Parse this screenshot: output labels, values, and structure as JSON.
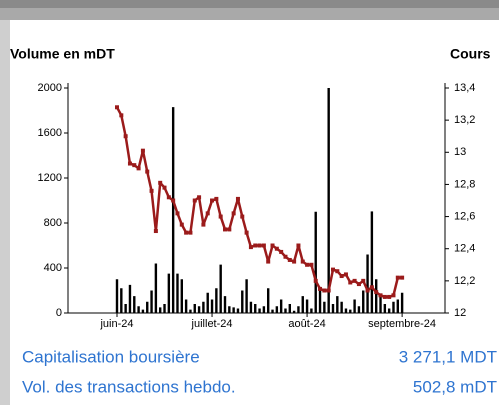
{
  "chart_data": {
    "type": "bar-line",
    "y_label": "Volume en mDT",
    "y2_label": "Cours",
    "categories": [
      "juin-24",
      null,
      null,
      null,
      null,
      null,
      null,
      null,
      null,
      null,
      null,
      null,
      null,
      null,
      null,
      null,
      null,
      null,
      null,
      null,
      null,
      null,
      "juillet-24",
      null,
      null,
      null,
      null,
      null,
      null,
      null,
      null,
      null,
      null,
      null,
      null,
      null,
      null,
      null,
      null,
      null,
      null,
      null,
      null,
      null,
      "août-24",
      null,
      null,
      null,
      null,
      null,
      null,
      null,
      null,
      null,
      null,
      null,
      null,
      null,
      null,
      null,
      null,
      null,
      null,
      null,
      null,
      null,
      "septembre-24"
    ],
    "series": [
      {
        "color": "#000000",
        "values": [
          300,
          220,
          80,
          250,
          150,
          60,
          30,
          100,
          200,
          440,
          50,
          80,
          350,
          1830,
          350,
          300,
          120,
          30,
          80,
          60,
          100,
          180,
          120,
          220,
          430,
          150,
          60,
          50,
          40,
          200,
          300,
          100,
          80,
          40,
          60,
          220,
          30,
          60,
          120,
          40,
          80,
          20,
          60,
          150,
          120,
          40,
          900,
          200,
          100,
          2000,
          80,
          150,
          100,
          40,
          30,
          120,
          60,
          200,
          520,
          903,
          300,
          150,
          80,
          40,
          100,
          120,
          180
        ]
      },
      {
        "color": "#9b1b1b",
        "axis": "y2",
        "values": [
          13.28,
          13.23,
          13.1,
          12.93,
          12.92,
          12.9,
          13.01,
          12.88,
          12.76,
          12.51,
          12.81,
          12.78,
          12.72,
          12.7,
          12.62,
          12.55,
          12.5,
          12.5,
          12.7,
          12.72,
          12.55,
          12.62,
          12.7,
          12.71,
          12.6,
          12.52,
          12.52,
          12.62,
          12.71,
          12.6,
          12.5,
          12.41,
          12.42,
          12.42,
          12.42,
          12.32,
          12.42,
          12.4,
          12.38,
          12.35,
          12.33,
          12.32,
          12.42,
          12.32,
          12.3,
          12.3,
          12.2,
          12.15,
          12.14,
          12.14,
          12.27,
          12.26,
          12.23,
          12.24,
          12.19,
          12.2,
          12.18,
          12.2,
          12.14,
          12.16,
          12.13,
          12.11,
          12.1,
          12.1,
          12.11,
          12.22,
          12.22
        ]
      }
    ],
    "ylim": [
      0,
      2000
    ],
    "yticks": [
      0,
      400,
      800,
      1200,
      1600,
      2000
    ],
    "y2lim": [
      12,
      13.4
    ],
    "y2ticks": [
      12,
      {
        "value": 12.2,
        "label": "12,2"
      },
      {
        "value": 12.4,
        "label": "12,4"
      },
      {
        "value": 12.6,
        "label": "12,6"
      },
      {
        "value": 12.8,
        "label": "12,8"
      },
      13,
      {
        "value": 13.2,
        "label": "13,2"
      },
      {
        "value": 13.4,
        "label": "13,4"
      }
    ]
  },
  "stats": [
    {
      "label": "Capitalisation boursière",
      "value": "3 271,1 MDT"
    },
    {
      "label": "Vol. des transactions hebdo.",
      "value": "502,8 mDT"
    }
  ]
}
